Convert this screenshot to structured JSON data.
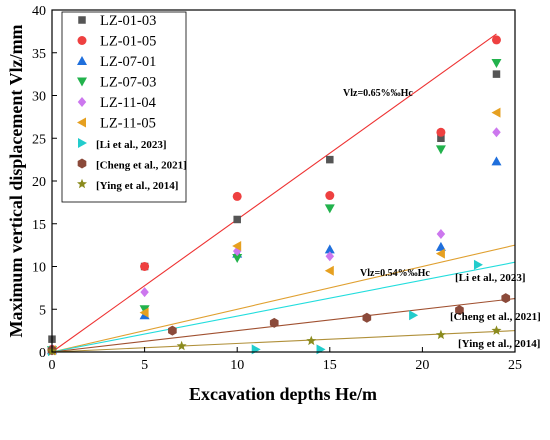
{
  "chart_data": {
    "type": "scatter",
    "xlabel": "Excavation depths He/m",
    "ylabel": "Maximum vertical displacement Vlz/mm",
    "xlim": [
      0,
      25
    ],
    "ylim": [
      0,
      40
    ],
    "xticks": [
      "0",
      "5",
      "10",
      "15",
      "20",
      "25"
    ],
    "yticks": [
      "0",
      "5",
      "10",
      "15",
      "20",
      "25",
      "30",
      "35",
      "40"
    ],
    "legend_position": "top-left",
    "series": [
      {
        "name": "LZ-01-03",
        "marker": "square",
        "color": "#555555",
        "points": [
          [
            0,
            1.5
          ],
          [
            5,
            10.0
          ],
          [
            10,
            15.5
          ],
          [
            15,
            22.5
          ],
          [
            21,
            25.0
          ],
          [
            24,
            32.5
          ]
        ]
      },
      {
        "name": "LZ-01-05",
        "marker": "circle",
        "color": "#ee4040",
        "points": [
          [
            0,
            0.3
          ],
          [
            5,
            10.0
          ],
          [
            10,
            18.2
          ],
          [
            15,
            18.3
          ],
          [
            21,
            25.7
          ],
          [
            24,
            36.5
          ]
        ]
      },
      {
        "name": "LZ-07-01",
        "marker": "triangle-up",
        "color": "#1f6fdc",
        "points": [
          [
            0,
            0.2
          ],
          [
            5,
            4.3
          ],
          [
            10,
            11.5
          ],
          [
            15,
            12.0
          ],
          [
            21,
            12.3
          ],
          [
            24,
            22.3
          ]
        ]
      },
      {
        "name": "LZ-07-03",
        "marker": "triangle-down",
        "color": "#22b24c",
        "points": [
          [
            0,
            0.2
          ],
          [
            5,
            5.0
          ],
          [
            10,
            11.0
          ],
          [
            15,
            16.8
          ],
          [
            21,
            23.7
          ],
          [
            24,
            33.8
          ]
        ]
      },
      {
        "name": "LZ-11-04",
        "marker": "diamond",
        "color": "#cc77ee",
        "points": [
          [
            0,
            0.3
          ],
          [
            5,
            7.0
          ],
          [
            10,
            11.8
          ],
          [
            15,
            11.2
          ],
          [
            21,
            13.8
          ],
          [
            24,
            25.7
          ]
        ]
      },
      {
        "name": "LZ-11-05",
        "marker": "triangle-left",
        "color": "#e6a020",
        "points": [
          [
            0,
            0.2
          ],
          [
            5,
            4.6
          ],
          [
            10,
            12.4
          ],
          [
            15,
            9.5
          ],
          [
            21,
            11.5
          ],
          [
            24,
            28.0
          ]
        ]
      },
      {
        "name": "[Li et al., 2023]",
        "marker": "triangle-right",
        "color": "#22cccc",
        "points": [
          [
            0,
            0.1
          ],
          [
            11,
            0.3
          ],
          [
            14.5,
            0.3
          ],
          [
            19.5,
            4.3
          ],
          [
            23,
            10.2
          ]
        ]
      },
      {
        "name": "[Cheng et al., 2021]",
        "marker": "hexagon",
        "color": "#8b4a3a",
        "points": [
          [
            0,
            0.2
          ],
          [
            6.5,
            2.5
          ],
          [
            12,
            3.4
          ],
          [
            17,
            4.0
          ],
          [
            22,
            4.9
          ],
          [
            24.5,
            6.3
          ]
        ]
      },
      {
        "name": "[Ying et al., 2014]",
        "marker": "star",
        "color": "#8b8b1e",
        "points": [
          [
            0,
            0.1
          ],
          [
            7,
            0.7
          ],
          [
            14,
            1.3
          ],
          [
            21,
            2.0
          ],
          [
            24,
            2.5
          ]
        ]
      }
    ],
    "lines": [
      {
        "label": "Vlz=0.65%‰Hc",
        "slope": 1.55,
        "color": "#ee3333",
        "x_end": 24
      },
      {
        "label": "Vlz=0.54%‰Hc",
        "slope": 0.5,
        "color": "#e0a030",
        "x_end": 25
      },
      {
        "label": "[Li et al., 2023]",
        "slope": 0.42,
        "color": "#22dddd",
        "x_end": 25
      },
      {
        "label": "[Cheng et al., 2021]",
        "slope": 0.25,
        "color": "#a05030",
        "x_end": 25
      },
      {
        "label": "[Ying et al., 2014]",
        "slope": 0.1,
        "color": "#b0903a",
        "x_end": 25
      }
    ],
    "annotations": [
      "Vlz=0.65%‰Hc",
      "Vlz=0.54%‰Hc",
      "[Li et al., 2023]",
      "[Cheng et al., 2021]",
      "[Ying et al., 2014]"
    ]
  }
}
